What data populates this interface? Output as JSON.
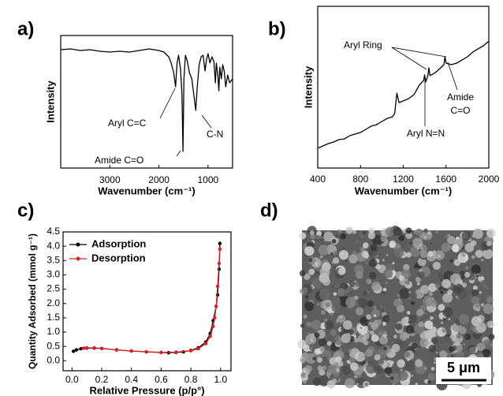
{
  "chart_data": [
    {
      "type": "line",
      "panel": "a)",
      "xlabel": "Wavenumber (cm⁻¹)",
      "ylabel": "Intensity",
      "xlim": [
        4000,
        500
      ],
      "ylim": [
        0,
        100
      ],
      "xticks": [
        3000,
        2000,
        1000
      ],
      "color": "#000000",
      "x": [
        4000,
        3800,
        3600,
        3400,
        3200,
        3000,
        2800,
        2600,
        2400,
        2200,
        2000,
        1900,
        1800,
        1750,
        1700,
        1660,
        1630,
        1600,
        1560,
        1530,
        1510,
        1490,
        1460,
        1420,
        1380,
        1330,
        1290,
        1250,
        1220,
        1180,
        1140,
        1100,
        1060,
        1030,
        1000,
        960,
        920,
        880,
        850,
        830,
        800,
        780,
        760,
        730,
        700,
        670,
        640,
        600,
        560,
        500
      ],
      "values": [
        89.3,
        89.9,
        88.7,
        89.3,
        88.1,
        87.5,
        88.1,
        87.5,
        88.7,
        89.9,
        88.7,
        87.5,
        83.9,
        79.2,
        72.0,
        61.3,
        79.2,
        85.1,
        74.4,
        55.4,
        12.5,
        67.3,
        85.1,
        80.4,
        72.0,
        67.3,
        55.4,
        43.5,
        61.3,
        78.0,
        83.9,
        85.1,
        73.2,
        82.1,
        86.3,
        79.2,
        83.9,
        80.4,
        64.3,
        79.2,
        70.2,
        58.3,
        76.2,
        67.3,
        78.0,
        73.2,
        61.3,
        70.2,
        64.3,
        67.3
      ],
      "annotations": [
        "Aryl C=C",
        "Amide C=O",
        "C-N"
      ]
    },
    {
      "type": "line",
      "panel": "b)",
      "xlabel": "Wavenumber (cm⁻¹)",
      "ylabel": "Intensity",
      "xlim": [
        400,
        2000
      ],
      "ylim": [
        0,
        100
      ],
      "xticks": [
        400,
        800,
        1200,
        1600,
        2000
      ],
      "color": "#000000",
      "x": [
        400,
        450,
        500,
        550,
        600,
        650,
        700,
        750,
        800,
        850,
        900,
        950,
        1000,
        1050,
        1100,
        1120,
        1140,
        1150,
        1160,
        1200,
        1250,
        1300,
        1350,
        1390,
        1400,
        1410,
        1430,
        1440,
        1450,
        1500,
        1550,
        1580,
        1590,
        1600,
        1650,
        1700,
        1750,
        1800,
        1850,
        1900,
        1950,
        2000
      ],
      "values": [
        12.2,
        13.7,
        15.1,
        16.1,
        17.6,
        18.0,
        20.0,
        21.0,
        22.0,
        23.9,
        25.9,
        26.8,
        28.8,
        30.7,
        31.7,
        33.7,
        46.3,
        43.4,
        40.5,
        41.5,
        42.9,
        45.4,
        51.2,
        54.1,
        57.6,
        53.2,
        57.1,
        62.0,
        57.1,
        59.0,
        62.0,
        63.9,
        68.8,
        64.9,
        63.9,
        64.9,
        66.8,
        68.8,
        71.7,
        73.7,
        75.6,
        78.5
      ],
      "annotations": [
        "Aryl Ring",
        "Aryl N=N",
        "Amide",
        "C=O"
      ]
    },
    {
      "type": "scatter-line",
      "panel": "c)",
      "xlabel": "Relative Pressure (p/p°)",
      "ylabel": "Quantity Adsorbed (mmol g⁻¹)",
      "xlim": [
        -0.06,
        1.07
      ],
      "ylim": [
        -0.35,
        4.5
      ],
      "xticks": [
        {
          "value": 0,
          "label": "0.0"
        },
        0.2,
        0.4,
        0.6,
        0.8,
        {
          "value": 1,
          "label": "1.0"
        }
      ],
      "yticks": [
        {
          "value": 0,
          "label": "0.0"
        },
        0.5,
        {
          "value": 1,
          "label": "1.0"
        },
        1.5,
        {
          "value": 2,
          "label": "2.0"
        },
        2.5,
        {
          "value": 3,
          "label": "3.0"
        },
        3.5,
        {
          "value": 4,
          "label": "4.0"
        },
        4.5
      ],
      "legend": "upper left",
      "series": [
        {
          "name": "Adsorption",
          "color": "#000000",
          "x": [
            0.01,
            0.03,
            0.06,
            0.1,
            0.15,
            0.2,
            0.3,
            0.4,
            0.5,
            0.6,
            0.65,
            0.7,
            0.75,
            0.8,
            0.85,
            0.9,
            0.93,
            0.95,
            0.97,
            0.98,
            0.99,
            0.995
          ],
          "values": [
            0.33,
            0.38,
            0.42,
            0.44,
            0.44,
            0.43,
            0.38,
            0.34,
            0.31,
            0.29,
            0.28,
            0.29,
            0.31,
            0.36,
            0.45,
            0.65,
            0.95,
            1.4,
            1.9,
            2.3,
            3.2,
            4.1
          ]
        },
        {
          "name": "Desorption",
          "color": "#e02020",
          "x": [
            0.995,
            0.99,
            0.98,
            0.97,
            0.96,
            0.95,
            0.93,
            0.9,
            0.85,
            0.8,
            0.7,
            0.6,
            0.5,
            0.4,
            0.3,
            0.2,
            0.15,
            0.1,
            0.08
          ],
          "values": [
            3.9,
            3.4,
            2.6,
            1.9,
            1.5,
            1.2,
            0.85,
            0.6,
            0.42,
            0.35,
            0.3,
            0.29,
            0.31,
            0.34,
            0.38,
            0.43,
            0.45,
            0.45,
            0.44
          ]
        }
      ]
    }
  ],
  "image": {
    "panel": "d)",
    "scale_bar": "5 μm"
  }
}
